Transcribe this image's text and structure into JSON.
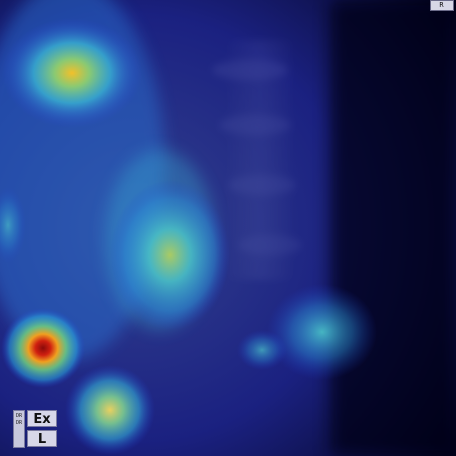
{
  "image": {
    "description_visible_labels": true,
    "colors": {
      "background_dark": "#05052a",
      "heat_low": "#2a2ad8",
      "heat_mid": "#39c2d6",
      "heat_high": "#f0d040",
      "heat_peak": "#b01010"
    }
  },
  "markers": {
    "top_right": "R",
    "left_side_text": "DR\nDR",
    "left_ex": "Ex",
    "left_l": "L"
  }
}
